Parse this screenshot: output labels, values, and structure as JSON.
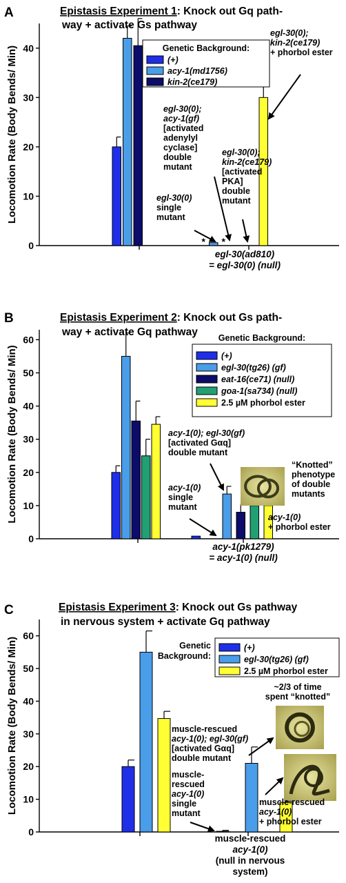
{
  "chart_data": [
    {
      "type": "bar",
      "letter": "A",
      "title_underlined": "Epistasis Experiment 1",
      "title_line1_rest": ": Knock out Gq path-",
      "title_line2": "way + activate Gs pathway",
      "ylabel": "Locomotion Rate (Body Bends/ Min)",
      "ylim": [
        0,
        45
      ],
      "yticks": [
        0,
        10,
        20,
        30,
        40
      ],
      "legend_title": [
        "Genetic Background:"
      ],
      "legend": [
        {
          "name": "(+)",
          "italic": true,
          "color": "#1f2fe8"
        },
        {
          "name": "acy-1(md1756)",
          "italic": true,
          "color": "#4a9de8"
        },
        {
          "name": "kin-2(ce179)",
          "italic": true,
          "color": "#0c0c6a"
        }
      ],
      "bars": [
        {
          "group": 0,
          "value": 20,
          "err": 2,
          "color": "#1f2fe8"
        },
        {
          "group": 0,
          "value": 42,
          "err": 2.5,
          "color": "#4a9de8"
        },
        {
          "group": 0,
          "value": 40.5,
          "err": 5.5,
          "color": "#0c0c6a"
        },
        {
          "group": 1,
          "value": 0,
          "err": 0,
          "color": "#1f2fe8",
          "star": true
        },
        {
          "group": 1,
          "value": 0.6,
          "err": 0,
          "color": "#4a9de8"
        },
        {
          "group": 1,
          "value": 0,
          "err": 0,
          "color": "#0c0c6a",
          "star": true
        },
        {
          "group": 1,
          "value": 30,
          "err": 3.2,
          "color": "#ffff33"
        }
      ],
      "xgroup_labels": [
        {
          "group": 1,
          "lines": [
            "egl-30(ad810)",
            "= egl-30(0) (null)"
          ]
        }
      ],
      "annotations": [
        {
          "lines": [
            "egl-30(0)",
            "single",
            "mutant"
          ]
        },
        {
          "lines": [
            "egl-30(0);",
            "acy-1(gf)",
            "[activated",
            "adenylyl",
            "cyclase]",
            "double",
            "mutant"
          ]
        },
        {
          "lines": [
            "egl-30(0);",
            "kin-2(ce179)",
            "[activated",
            "PKA]",
            "double",
            "mutant"
          ]
        },
        {
          "lines": [
            "egl-30(0);",
            "kin-2(ce179)",
            "+ phorbol ester"
          ]
        }
      ]
    },
    {
      "type": "bar",
      "letter": "B",
      "title_underlined": "Epistasis Experiment 2",
      "title_line1_rest": ": Knock out Gs path-",
      "title_line2": "way + activate Gq pathway",
      "ylabel": "Locomotion Rate (Body Bends/ Min)",
      "ylim": [
        0,
        63
      ],
      "yticks": [
        0,
        10,
        20,
        30,
        40,
        50,
        60
      ],
      "legend_title": [
        "Genetic Background:"
      ],
      "legend": [
        {
          "name": "(+)",
          "italic": true,
          "color": "#1f2fe8"
        },
        {
          "name": "egl-30(tg26) (gf)",
          "italic": true,
          "color": "#4a9de8"
        },
        {
          "name": "eat-16(ce71) (null)",
          "italic": true,
          "color": "#0c0c6a"
        },
        {
          "name": "goa-1(sa734) (null)",
          "italic": true,
          "color": "#21a074"
        },
        {
          "name": "2.5 µM phorbol ester",
          "italic": false,
          "color": "#ffff33"
        }
      ],
      "bars": [
        {
          "group": 0,
          "value": 20,
          "err": 2,
          "color": "#1f2fe8"
        },
        {
          "group": 0,
          "value": 55,
          "err": 7,
          "color": "#4a9de8"
        },
        {
          "group": 0,
          "value": 35.5,
          "err": 6,
          "color": "#0c0c6a"
        },
        {
          "group": 0,
          "value": 25,
          "err": 5,
          "color": "#21a074"
        },
        {
          "group": 0,
          "value": 34.5,
          "err": 2.3,
          "color": "#ffff33"
        },
        {
          "group": 1,
          "value": 0.8,
          "err": 0,
          "color": "#1f2fe8"
        },
        {
          "group": 1,
          "value": 13.5,
          "err": 2.3,
          "color": "#4a9de8"
        },
        {
          "group": 1,
          "value": 8,
          "err": 2.5,
          "color": "#0c0c6a"
        },
        {
          "group": 1,
          "value": 10,
          "err": 1.3,
          "color": "#21a074"
        },
        {
          "group": 1,
          "value": 10,
          "err": 1.2,
          "color": "#ffff33"
        }
      ],
      "xgroup_labels": [
        {
          "group": 1,
          "lines": [
            "acy-1(pk1279)",
            "= acy-1(0) (null)"
          ]
        }
      ],
      "annotations": [
        {
          "lines": [
            "acy-1(0); egl-30(gf)",
            "[activated Gαq]",
            "double mutant"
          ]
        },
        {
          "lines": [
            "acy-1(0)",
            "single",
            "mutant"
          ]
        },
        {
          "lines": [
            "“Knotted”",
            "phenotype",
            "of double",
            "mutants"
          ]
        },
        {
          "lines": [
            "acy-1(0)",
            "+ phorbol ester"
          ]
        }
      ]
    },
    {
      "type": "bar",
      "letter": "C",
      "title_underlined": "Epistasis Experiment 3",
      "title_line1_rest": ": Knock out Gs pathway",
      "title_line2": "in nervous system + activate Gq pathway",
      "ylabel": "Locomotion Rate (Body Bends/ Min)",
      "ylim": [
        0,
        65
      ],
      "yticks": [
        0,
        10,
        20,
        30,
        40,
        50,
        60
      ],
      "legend_title": [
        "Genetic",
        "Background:"
      ],
      "legend": [
        {
          "name": "(+)",
          "italic": true,
          "color": "#1f2fe8"
        },
        {
          "name": "egl-30(tg26) (gf)",
          "italic": true,
          "color": "#4a9de8"
        },
        {
          "name": "2.5 µM phorbol ester",
          "italic": false,
          "color": "#ffff33"
        }
      ],
      "bars": [
        {
          "group": 0,
          "value": 20,
          "err": 2,
          "color": "#1f2fe8"
        },
        {
          "group": 0,
          "value": 55,
          "err": 6.5,
          "color": "#4a9de8"
        },
        {
          "group": 0,
          "value": 34.7,
          "err": 2.2,
          "color": "#ffff33"
        },
        {
          "group": 1,
          "value": 0.2,
          "err": 0.3,
          "color": "#1f2fe8"
        },
        {
          "group": 1,
          "value": 21,
          "err": 5,
          "color": "#4a9de8"
        },
        {
          "group": 1,
          "value": 9,
          "err": 0.4,
          "color": "#ffff33"
        }
      ],
      "xgroup_labels": [
        {
          "group": 1,
          "lines": [
            "muscle-rescued",
            "acy-1(0)",
            "(null in nervous",
            "system)"
          ]
        }
      ],
      "annotations": [
        {
          "lines": [
            "~2/3 of time",
            "spent “knotted”"
          ]
        },
        {
          "lines": [
            "muscle-rescued",
            "acy-1(0); egl-30(gf)",
            "[activated Gαq]",
            "double mutant"
          ]
        },
        {
          "lines": [
            "muscle-",
            "rescued",
            "acy-1(0)",
            "single",
            "mutant"
          ]
        },
        {
          "lines": [
            "muscle-rescued",
            "acy-1(0)",
            "+ phorbol ester"
          ]
        }
      ]
    }
  ]
}
